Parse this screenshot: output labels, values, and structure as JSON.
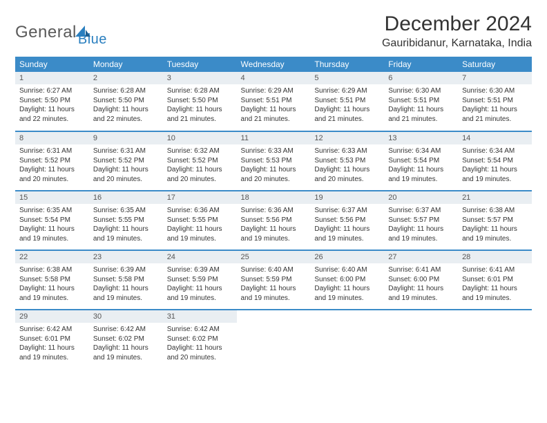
{
  "brand": {
    "part1": "General",
    "part2": "Blue"
  },
  "title": "December 2024",
  "location": "Gauribidanur, Karnataka, India",
  "colors": {
    "header_bg": "#3b8bc8",
    "header_text": "#ffffff",
    "daynum_bg": "#e9eef2",
    "row_divider": "#3b8bc8",
    "text": "#333333",
    "brand_gray": "#5a5a5a",
    "brand_blue": "#2a7fbf"
  },
  "weekdays": [
    "Sunday",
    "Monday",
    "Tuesday",
    "Wednesday",
    "Thursday",
    "Friday",
    "Saturday"
  ],
  "days": [
    {
      "n": "1",
      "sr": "6:27 AM",
      "ss": "5:50 PM",
      "dl": "11 hours and 22 minutes."
    },
    {
      "n": "2",
      "sr": "6:28 AM",
      "ss": "5:50 PM",
      "dl": "11 hours and 22 minutes."
    },
    {
      "n": "3",
      "sr": "6:28 AM",
      "ss": "5:50 PM",
      "dl": "11 hours and 21 minutes."
    },
    {
      "n": "4",
      "sr": "6:29 AM",
      "ss": "5:51 PM",
      "dl": "11 hours and 21 minutes."
    },
    {
      "n": "5",
      "sr": "6:29 AM",
      "ss": "5:51 PM",
      "dl": "11 hours and 21 minutes."
    },
    {
      "n": "6",
      "sr": "6:30 AM",
      "ss": "5:51 PM",
      "dl": "11 hours and 21 minutes."
    },
    {
      "n": "7",
      "sr": "6:30 AM",
      "ss": "5:51 PM",
      "dl": "11 hours and 21 minutes."
    },
    {
      "n": "8",
      "sr": "6:31 AM",
      "ss": "5:52 PM",
      "dl": "11 hours and 20 minutes."
    },
    {
      "n": "9",
      "sr": "6:31 AM",
      "ss": "5:52 PM",
      "dl": "11 hours and 20 minutes."
    },
    {
      "n": "10",
      "sr": "6:32 AM",
      "ss": "5:52 PM",
      "dl": "11 hours and 20 minutes."
    },
    {
      "n": "11",
      "sr": "6:33 AM",
      "ss": "5:53 PM",
      "dl": "11 hours and 20 minutes."
    },
    {
      "n": "12",
      "sr": "6:33 AM",
      "ss": "5:53 PM",
      "dl": "11 hours and 20 minutes."
    },
    {
      "n": "13",
      "sr": "6:34 AM",
      "ss": "5:54 PM",
      "dl": "11 hours and 19 minutes."
    },
    {
      "n": "14",
      "sr": "6:34 AM",
      "ss": "5:54 PM",
      "dl": "11 hours and 19 minutes."
    },
    {
      "n": "15",
      "sr": "6:35 AM",
      "ss": "5:54 PM",
      "dl": "11 hours and 19 minutes."
    },
    {
      "n": "16",
      "sr": "6:35 AM",
      "ss": "5:55 PM",
      "dl": "11 hours and 19 minutes."
    },
    {
      "n": "17",
      "sr": "6:36 AM",
      "ss": "5:55 PM",
      "dl": "11 hours and 19 minutes."
    },
    {
      "n": "18",
      "sr": "6:36 AM",
      "ss": "5:56 PM",
      "dl": "11 hours and 19 minutes."
    },
    {
      "n": "19",
      "sr": "6:37 AM",
      "ss": "5:56 PM",
      "dl": "11 hours and 19 minutes."
    },
    {
      "n": "20",
      "sr": "6:37 AM",
      "ss": "5:57 PM",
      "dl": "11 hours and 19 minutes."
    },
    {
      "n": "21",
      "sr": "6:38 AM",
      "ss": "5:57 PM",
      "dl": "11 hours and 19 minutes."
    },
    {
      "n": "22",
      "sr": "6:38 AM",
      "ss": "5:58 PM",
      "dl": "11 hours and 19 minutes."
    },
    {
      "n": "23",
      "sr": "6:39 AM",
      "ss": "5:58 PM",
      "dl": "11 hours and 19 minutes."
    },
    {
      "n": "24",
      "sr": "6:39 AM",
      "ss": "5:59 PM",
      "dl": "11 hours and 19 minutes."
    },
    {
      "n": "25",
      "sr": "6:40 AM",
      "ss": "5:59 PM",
      "dl": "11 hours and 19 minutes."
    },
    {
      "n": "26",
      "sr": "6:40 AM",
      "ss": "6:00 PM",
      "dl": "11 hours and 19 minutes."
    },
    {
      "n": "27",
      "sr": "6:41 AM",
      "ss": "6:00 PM",
      "dl": "11 hours and 19 minutes."
    },
    {
      "n": "28",
      "sr": "6:41 AM",
      "ss": "6:01 PM",
      "dl": "11 hours and 19 minutes."
    },
    {
      "n": "29",
      "sr": "6:42 AM",
      "ss": "6:01 PM",
      "dl": "11 hours and 19 minutes."
    },
    {
      "n": "30",
      "sr": "6:42 AM",
      "ss": "6:02 PM",
      "dl": "11 hours and 19 minutes."
    },
    {
      "n": "31",
      "sr": "6:42 AM",
      "ss": "6:02 PM",
      "dl": "11 hours and 20 minutes."
    }
  ],
  "labels": {
    "sunrise": "Sunrise:",
    "sunset": "Sunset:",
    "daylight": "Daylight:"
  }
}
